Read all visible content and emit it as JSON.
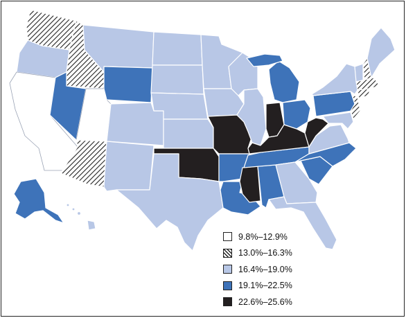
{
  "colors": {
    "class_0": "#ffffff",
    "class_1": "hatched",
    "class_2": "#b8c7e6",
    "class_3": "#3e73b9",
    "class_4": "#231f20"
  },
  "legend": {
    "items": [
      {
        "label": "9.8%–12.9%",
        "class": 0
      },
      {
        "label": "13.0%–16.3%",
        "class": 1
      },
      {
        "label": "16.4%–19.0%",
        "class": 2
      },
      {
        "label": "19.1%–22.5%",
        "class": 3
      },
      {
        "label": "22.6%–25.6%",
        "class": 4
      }
    ]
  },
  "states": {
    "WA": 1,
    "OR": 2,
    "CA": 0,
    "ID": 1,
    "NV": 3,
    "UT": 0,
    "AZ": 1,
    "MT": 2,
    "WY": 3,
    "CO": 2,
    "NM": 2,
    "ND": 2,
    "SD": 2,
    "NE": 2,
    "KS": 2,
    "OK": 4,
    "TX": 2,
    "MN": 2,
    "IA": 2,
    "MO": 4,
    "AR": 3,
    "LA": 3,
    "WI": 2,
    "IL": 2,
    "MI": 3,
    "IN": 4,
    "OH": 3,
    "KY": 4,
    "TN": 3,
    "MS": 4,
    "AL": 3,
    "GA": 2,
    "FL": 2,
    "SC": 3,
    "NC": 3,
    "VA": 2,
    "WV": 4,
    "PA": 3,
    "NY": 2,
    "ME": 2,
    "VT": 2,
    "NH": 1,
    "MA": 1,
    "NJ": 1,
    "MD": 2,
    "AK": 3,
    "HI": 2
  }
}
